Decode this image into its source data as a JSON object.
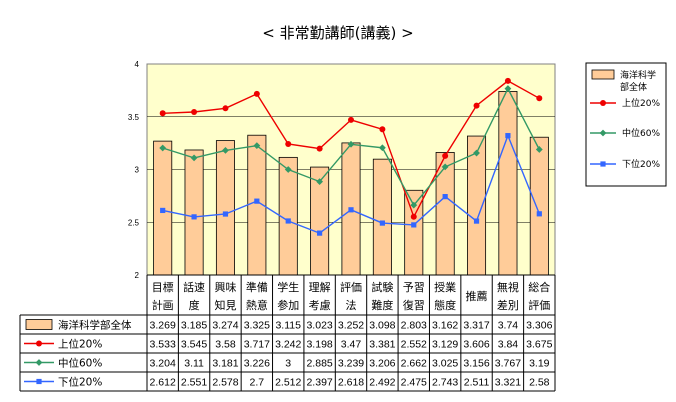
{
  "title": "< 非常勤講師(講義) >",
  "chart_data": {
    "type": "bar",
    "categories": [
      [
        "目標",
        "計画"
      ],
      [
        "話速",
        "度"
      ],
      [
        "興味",
        "知見"
      ],
      [
        "準備",
        "熱意"
      ],
      [
        "学生",
        "参加"
      ],
      [
        "理解",
        "考慮"
      ],
      [
        "評価",
        "法"
      ],
      [
        "試験",
        "難度"
      ],
      [
        "予習",
        "復習"
      ],
      [
        "授業",
        "態度"
      ],
      [
        "推薦"
      ],
      [
        "無視",
        "差別"
      ],
      [
        "総合",
        "評価"
      ]
    ],
    "ylim": [
      2,
      4
    ],
    "yticks": [
      "2",
      "2.5",
      "3",
      "3.5",
      "4"
    ],
    "series": [
      {
        "name": "海洋科学部全体",
        "kind": "bar",
        "color": "#FFCC99",
        "values": [
          3.269,
          3.185,
          3.274,
          3.325,
          3.115,
          3.023,
          3.252,
          3.098,
          2.803,
          3.162,
          3.317,
          3.74,
          3.306
        ],
        "labels": [
          "3.269",
          "3.185",
          "3.274",
          "3.325",
          "3.115",
          "3.023",
          "3.252",
          "3.098",
          "2.803",
          "3.162",
          "3.317",
          "3.74",
          "3.306"
        ]
      },
      {
        "name": "上位20%",
        "kind": "line",
        "color": "#EE0000",
        "values": [
          3.533,
          3.545,
          3.58,
          3.717,
          3.242,
          3.198,
          3.47,
          3.381,
          2.552,
          3.129,
          3.606,
          3.84,
          3.675
        ],
        "labels": [
          "3.533",
          "3.545",
          "3.58",
          "3.717",
          "3.242",
          "3.198",
          "3.47",
          "3.381",
          "2.552",
          "3.129",
          "3.606",
          "3.84",
          "3.675"
        ]
      },
      {
        "name": "中位60%",
        "kind": "line",
        "color": "#339966",
        "values": [
          3.204,
          3.11,
          3.181,
          3.226,
          3,
          2.885,
          3.239,
          3.206,
          2.662,
          3.025,
          3.156,
          3.767,
          3.19
        ],
        "labels": [
          "3.204",
          "3.11",
          "3.181",
          "3.226",
          "3",
          "2.885",
          "3.239",
          "3.206",
          "2.662",
          "3.025",
          "3.156",
          "3.767",
          "3.19"
        ]
      },
      {
        "name": "下位20%",
        "kind": "line",
        "color": "#3366FF",
        "values": [
          2.612,
          2.551,
          2.578,
          2.7,
          2.512,
          2.397,
          2.618,
          2.492,
          2.475,
          2.743,
          2.511,
          3.321,
          2.58
        ],
        "labels": [
          "2.612",
          "2.551",
          "2.578",
          "2.7",
          "2.512",
          "2.397",
          "2.618",
          "2.492",
          "2.475",
          "2.743",
          "2.511",
          "3.321",
          "2.58"
        ]
      }
    ],
    "legend_title": [
      "海洋科学",
      "部全体"
    ],
    "legend_entries": [
      "上位20%",
      "中位60%",
      "下位20%"
    ],
    "legend_position": "right",
    "plot_background": "#FFFFCC",
    "grid": true
  }
}
